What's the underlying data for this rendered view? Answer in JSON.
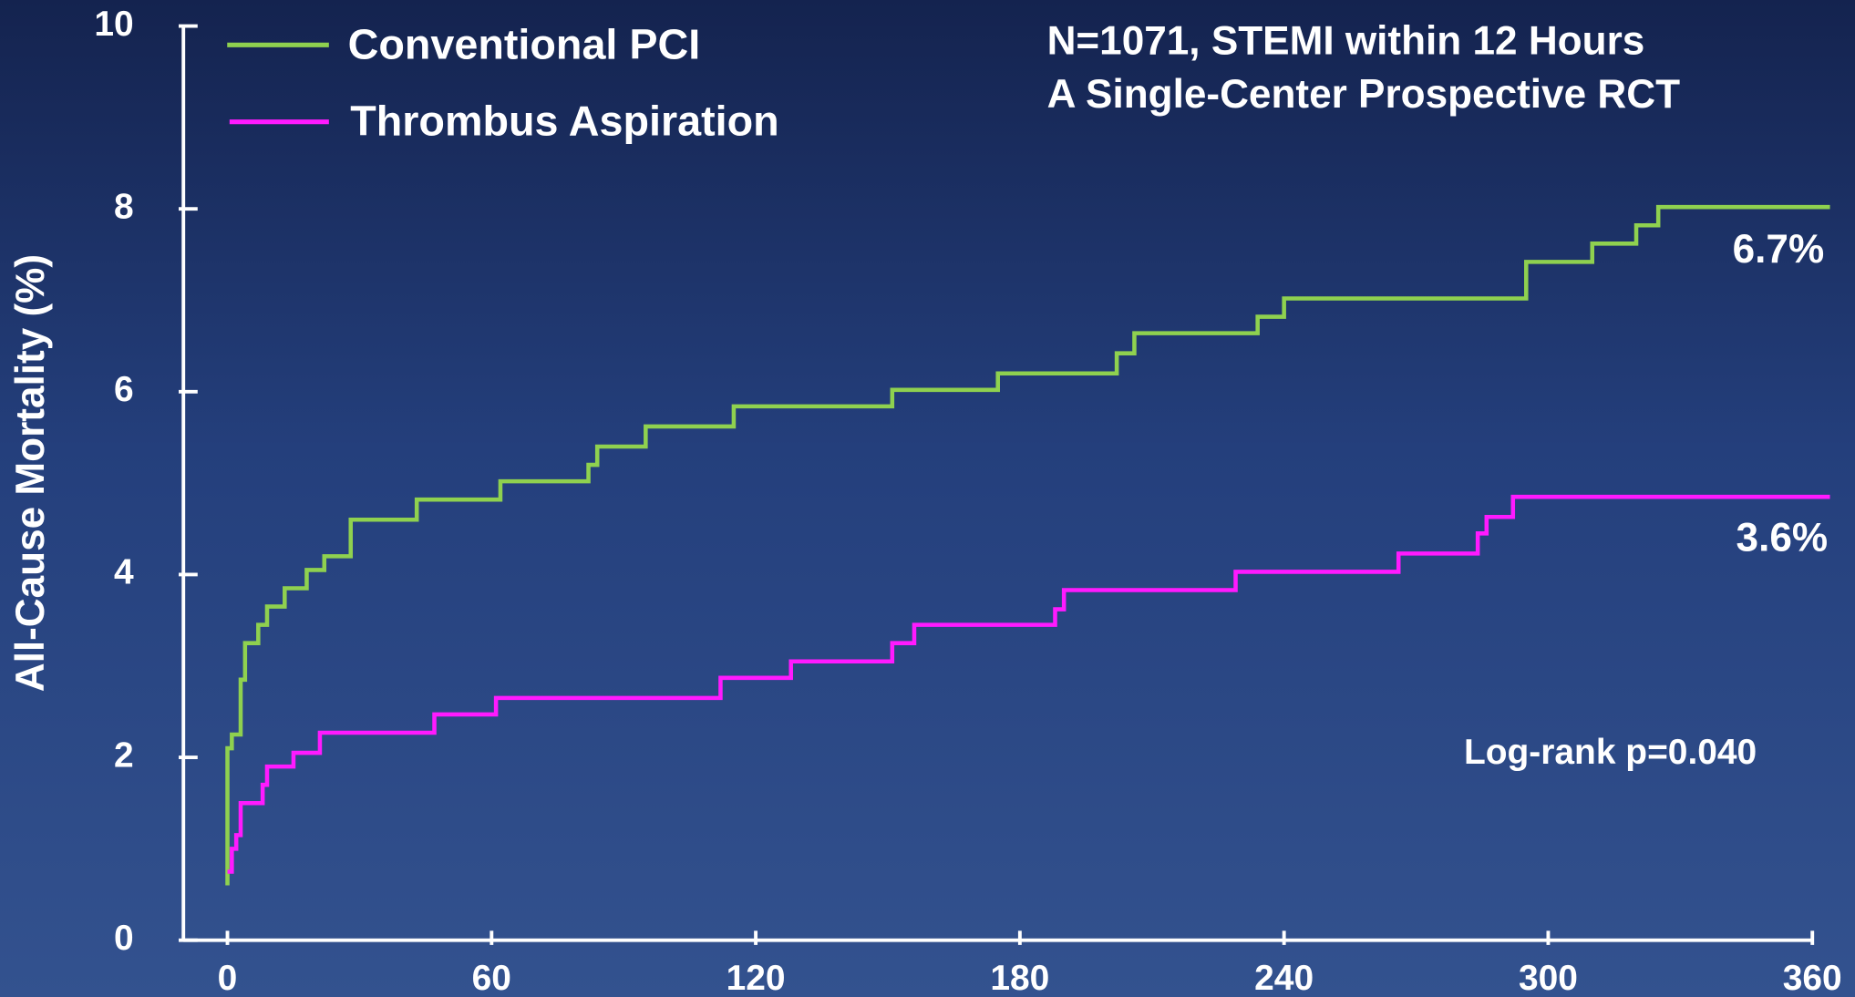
{
  "chart_data": {
    "type": "line",
    "step": "post",
    "ylabel": "All-Cause Mortality (%)",
    "annotations": [
      "N=1071, STEMI within 12 Hours",
      "A Single-Center Prospective RCT",
      "6.7%",
      "3.6%",
      "Log-rank p=0.040"
    ],
    "xlim": [
      -10,
      360
    ],
    "ylim": [
      0,
      10
    ],
    "xticks": [
      0,
      60,
      120,
      180,
      240,
      300,
      360
    ],
    "yticks": [
      0,
      2,
      4,
      6,
      8,
      10
    ],
    "series": [
      {
        "name": "Conventional PCI",
        "color": "#8fd14f",
        "x": [
          0,
          0,
          0,
          1,
          3,
          4,
          7,
          9,
          13,
          18,
          22,
          28,
          43,
          62,
          82,
          84,
          95,
          115,
          151,
          175,
          202,
          206,
          234,
          240,
          295,
          310,
          320,
          325,
          364
        ],
        "values": [
          0.6,
          1.3,
          2.1,
          2.25,
          2.85,
          3.25,
          3.45,
          3.65,
          3.85,
          4.05,
          4.2,
          4.6,
          4.82,
          5.02,
          5.2,
          5.4,
          5.62,
          5.84,
          6.02,
          6.2,
          6.42,
          6.64,
          6.82,
          7.02,
          7.42,
          7.62,
          7.82,
          8.02,
          8.02
        ]
      },
      {
        "name": "Thrombus Aspiration",
        "color": "#ff1aff",
        "x": [
          0,
          1,
          2,
          3,
          8,
          9,
          15,
          21,
          47,
          61,
          112,
          128,
          151,
          156,
          188,
          190,
          229,
          266,
          284,
          286,
          292,
          364
        ],
        "values": [
          0.75,
          1.0,
          1.15,
          1.5,
          1.7,
          1.9,
          2.05,
          2.27,
          2.47,
          2.65,
          2.87,
          3.05,
          3.25,
          3.45,
          3.62,
          3.83,
          4.03,
          4.23,
          4.45,
          4.63,
          4.85,
          4.85
        ]
      }
    ]
  }
}
